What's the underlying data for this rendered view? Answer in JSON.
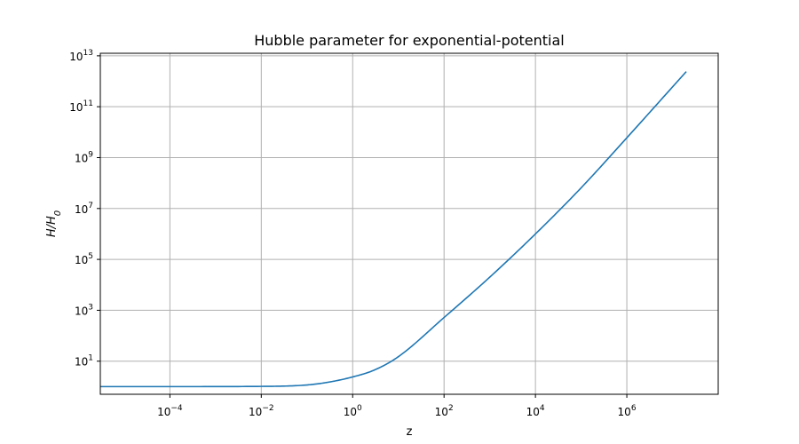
{
  "chart_data": {
    "type": "line",
    "title": "Hubble parameter for exponential-potential",
    "xlabel": "z",
    "ylabel": "H/H0",
    "ylabel_main": "H/H",
    "ylabel_sub": "0",
    "xscale": "log",
    "yscale": "log",
    "xlim": [
      3e-06,
      100000000.0
    ],
    "ylim": [
      0.5,
      12600000000000.0
    ],
    "xticks": [
      {
        "exp": -4,
        "base": "10",
        "sup": "−4"
      },
      {
        "exp": -2,
        "base": "10",
        "sup": "−2"
      },
      {
        "exp": 0,
        "base": "10",
        "sup": "0"
      },
      {
        "exp": 2,
        "base": "10",
        "sup": "2"
      },
      {
        "exp": 4,
        "base": "10",
        "sup": "4"
      },
      {
        "exp": 6,
        "base": "10",
        "sup": "6"
      }
    ],
    "yticks": [
      {
        "exp": 1,
        "base": "10",
        "sup": "1"
      },
      {
        "exp": 3,
        "base": "10",
        "sup": "3"
      },
      {
        "exp": 5,
        "base": "10",
        "sup": "5"
      },
      {
        "exp": 7,
        "base": "10",
        "sup": "7"
      },
      {
        "exp": 9,
        "base": "10",
        "sup": "9"
      },
      {
        "exp": 11,
        "base": "10",
        "sup": "11"
      },
      {
        "exp": 13,
        "base": "10",
        "sup": "13"
      }
    ],
    "grid": true,
    "series": [
      {
        "color": "#1f77b4",
        "x": [
          3e-06,
          0.0001,
          0.01,
          0.1,
          0.3,
          1.0,
          3.0,
          10.0,
          100.0,
          1000.0,
          10000.0,
          100000.0,
          1000000.0,
          10000000.0,
          20000000.0
        ],
        "y": [
          1.0,
          1.0,
          1.02,
          1.16,
          1.5,
          2.4,
          4.5,
          15.0,
          520.0,
          20000.0,
          1000000.0,
          65000000.0,
          6000000000.0,
          600000000000.0,
          2400000000000.0
        ]
      }
    ]
  }
}
